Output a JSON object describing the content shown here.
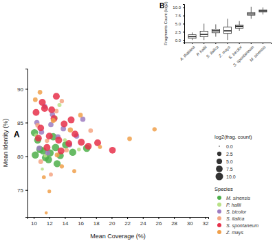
{
  "chart_data": [
    {
      "type": "scatter",
      "panel": "A",
      "x_label": "Mean Coverage (%)",
      "y_label": "Mean Identity (%)",
      "xlim": [
        9.2,
        32.4
      ],
      "ylim": [
        71,
        93
      ],
      "xticks": [
        10,
        12,
        14,
        16,
        18,
        20,
        22,
        24,
        26,
        28,
        30,
        32
      ],
      "yticks": [
        75,
        80,
        85,
        90
      ],
      "grid": false,
      "legend": "right",
      "legend_title": "Species",
      "size_title": "log2(frag. count)",
      "size_lim": [
        0,
        10
      ],
      "size_ticks": [
        {
          "value": 0,
          "label": "0.0"
        },
        {
          "value": 2.5,
          "label": "2.5"
        },
        {
          "value": 5,
          "label": "5.0"
        },
        {
          "value": 7.5,
          "label": "7.5"
        },
        {
          "value": 10,
          "label": "10.0"
        }
      ],
      "series": [
        {
          "name": "M. sinensis",
          "color": "#4daf4a",
          "x": [
            10.2,
            10.8,
            11.5,
            12.1,
            12.8,
            10.5,
            11.2,
            13.4,
            14.1,
            11.9,
            12.5,
            15.0,
            10.1,
            13.0,
            16.8
          ],
          "values": [
            80.2,
            81.0,
            79.8,
            80.5,
            81.3,
            82.4,
            80.8,
            80.1,
            81.7,
            79.5,
            82.9,
            80.6,
            83.5,
            78.9,
            81.2
          ],
          "size": [
            9,
            9,
            8.5,
            9,
            9.5,
            8.5,
            9,
            8.5,
            9,
            8.8,
            9.2,
            8.9,
            9.1,
            8.6,
            9.3
          ]
        },
        {
          "name": "P. hallii",
          "color": "#b8e186",
          "x": [
            10.3,
            11.5,
            12.8,
            14.0,
            11.1,
            15.8,
            13.3
          ],
          "values": [
            83.1,
            80.1,
            85.7,
            82.4,
            78.1,
            81.0,
            87.6
          ],
          "size": [
            2,
            1.5,
            2.5,
            1.7,
            1,
            1.8,
            2.2
          ]
        },
        {
          "name": "S. bicolor",
          "color": "#9e7cc1",
          "x": [
            10.4,
            11.0,
            11.8,
            12.4,
            13.1,
            13.8,
            14.6,
            10.7,
            12.2,
            15.5,
            11.4,
            16.3
          ],
          "values": [
            85.0,
            83.6,
            80.5,
            86.2,
            82.9,
            84.1,
            81.7,
            81.2,
            84.7,
            83.0,
            87.4,
            85.5
          ],
          "size": [
            4,
            4.2,
            3.8,
            4.1,
            4,
            4.3,
            3.9,
            4,
            4.2,
            4.1,
            3.8,
            4
          ]
        },
        {
          "name": "S. italica",
          "color": "#f4a582",
          "x": [
            10.5,
            11.7,
            12.9,
            14.2,
            10.9,
            13.6,
            12.2,
            17.3
          ],
          "values": [
            84.6,
            82.3,
            86.7,
            80.9,
            79.2,
            88.2,
            77.3,
            83.8
          ],
          "size": [
            3,
            2.5,
            3,
            2.8,
            3.2,
            2.6,
            2,
            2.9
          ]
        },
        {
          "name": "S. spontaneum",
          "color": "#e6304a",
          "x": [
            10.3,
            10.9,
            11.4,
            12.0,
            12.6,
            13.2,
            13.9,
            14.5,
            15.3,
            16.1,
            17.0,
            11.1,
            12.3,
            13.5,
            14.8,
            10.6,
            18.2,
            20.1,
            12.9,
            11.7
          ],
          "values": [
            86.5,
            84.2,
            87.1,
            83.0,
            85.6,
            82.4,
            84.8,
            81.9,
            83.3,
            82.1,
            81.5,
            88.0,
            86.9,
            80.8,
            85.4,
            82.7,
            82.0,
            80.9,
            88.9,
            81.3
          ],
          "size": [
            8,
            7.5,
            8.2,
            8,
            7.8,
            8.3,
            8,
            7.6,
            8.1,
            8.4,
            7.9,
            8,
            7.7,
            8.2,
            8,
            7.8,
            8.1,
            7.5,
            8,
            8.2
          ]
        },
        {
          "name": "Z. mays",
          "color": "#f0a04b",
          "x": [
            10.2,
            11.3,
            12.5,
            13.6,
            14.7,
            16.0,
            18.5,
            10.8,
            12.0,
            22.3,
            25.5,
            13.0,
            11.6,
            15.2
          ],
          "values": [
            88.4,
            76.9,
            85.3,
            78.5,
            83.9,
            86.1,
            81.4,
            89.5,
            74.8,
            82.6,
            84.0,
            80.2,
            71.6,
            77.8
          ],
          "size": [
            3,
            2,
            3.5,
            2.5,
            4,
            3,
            2,
            3,
            1.5,
            3,
            2.5,
            3.2,
            1,
            2
          ]
        }
      ]
    },
    {
      "type": "box",
      "panel": "B",
      "y_label": "Fragments Count (log2)",
      "categories": [
        "A. thaliana",
        "P. hallii",
        "S. italica",
        "Z. mays",
        "S. bicolor",
        "S. spontaneum",
        "M. sinensis"
      ],
      "min": [
        0,
        0,
        1,
        0,
        2.8,
        6.5,
        7.8
      ],
      "q1": [
        0.5,
        1,
        2.2,
        2,
        3.6,
        7.6,
        8.6
      ],
      "median": [
        1,
        1.7,
        2.8,
        2.8,
        4.2,
        8,
        8.9
      ],
      "q3": [
        1.6,
        2.7,
        3.3,
        4,
        4.6,
        8.4,
        9.2
      ],
      "max": [
        2.3,
        5,
        4.8,
        6.5,
        5.8,
        10.2,
        10
      ],
      "ylim": [
        -0.8,
        11
      ],
      "yticks": [
        {
          "value": 0,
          "label": "0.0"
        },
        {
          "value": 2.5,
          "label": "2.5"
        },
        {
          "value": 5,
          "label": "5.0"
        },
        {
          "value": 7.5,
          "label": "7.5"
        },
        {
          "value": 10,
          "label": "10.0"
        }
      ],
      "grid": false
    }
  ]
}
